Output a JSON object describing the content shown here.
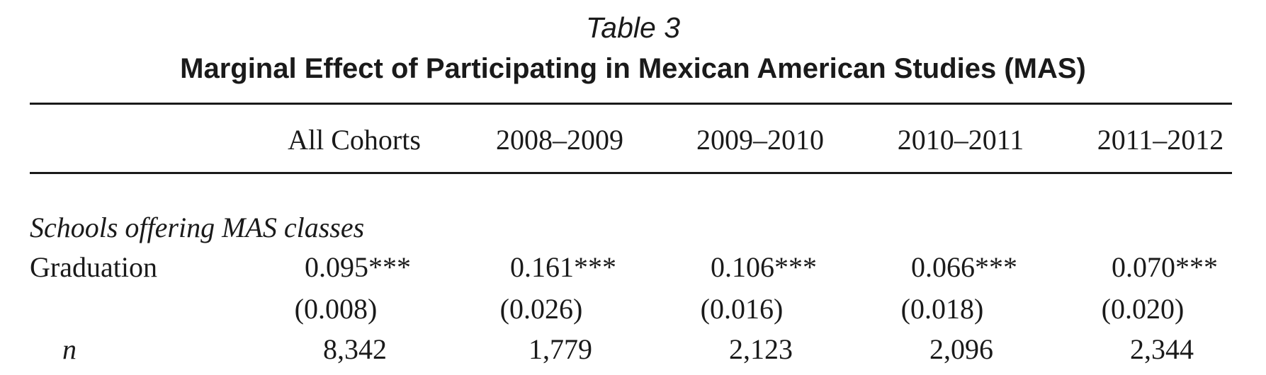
{
  "table": {
    "number": "Table 3",
    "title": "Marginal Effect of Participating in Mexican American Studies (MAS)",
    "columns": [
      "All Cohorts",
      "2008–2009",
      "2009–2010",
      "2010–2011",
      "2011–2012"
    ],
    "section": "Schools offering MAS classes",
    "rows": {
      "graduation": {
        "label": "Graduation",
        "values": [
          "0.095***",
          "0.161***",
          "0.106***",
          "0.066***",
          "0.070***"
        ]
      },
      "std_errors": {
        "label": "",
        "values": [
          "(0.008)",
          "(0.026)",
          "(0.016)",
          "(0.018)",
          "(0.020)"
        ]
      },
      "n": {
        "label": "n",
        "values": [
          "8,342",
          "1,779",
          "2,123",
          "2,096",
          "2,344"
        ]
      }
    }
  }
}
